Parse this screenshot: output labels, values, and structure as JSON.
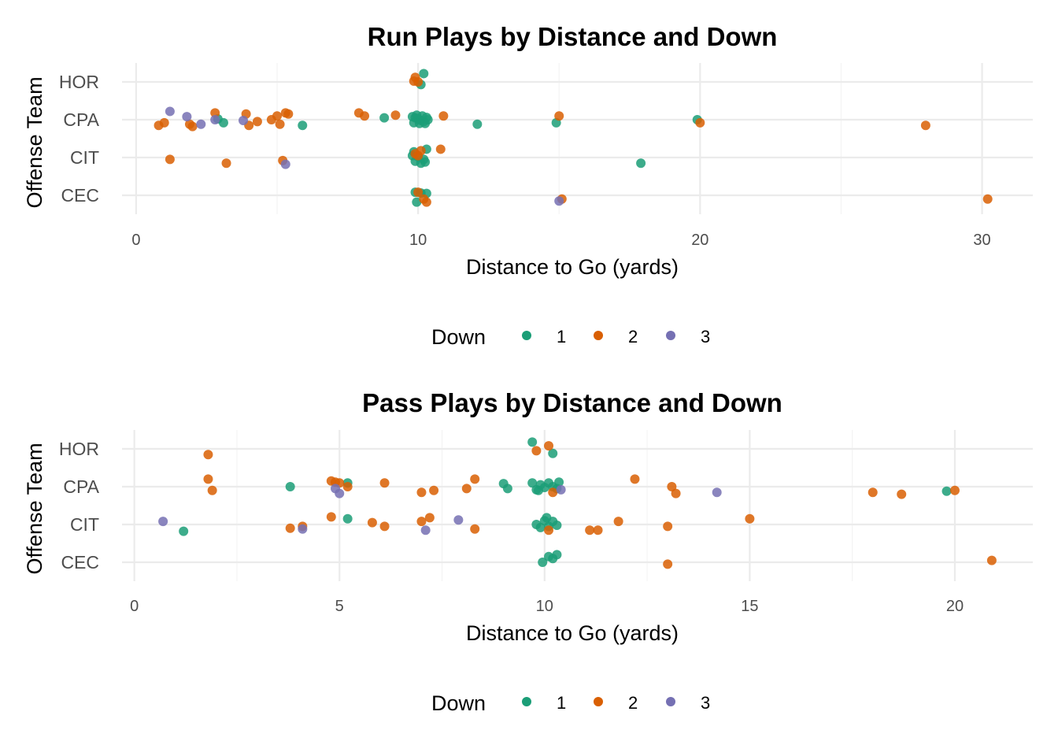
{
  "colors": {
    "down_1": "#1B9E77",
    "down_2": "#D95F02",
    "down_3": "#7570B3"
  },
  "chart_data": [
    {
      "type": "scatter",
      "title": "Run Plays by Distance and Down",
      "xlabel": "Distance to Go (yards)",
      "ylabel": "Offense Team",
      "categories": [
        "CEC",
        "CIT",
        "CPA",
        "HOR"
      ],
      "xticks": [
        0,
        10,
        20,
        30
      ],
      "xlim": [
        -0.5,
        31.8
      ],
      "grid": true,
      "legend": {
        "title": "Down",
        "position": "bottom",
        "entries": [
          "1",
          "2",
          "3"
        ]
      },
      "series": [
        {
          "name": "1",
          "points": [
            [
              10.2,
              "HOR",
              0.22
            ],
            [
              10.1,
              "HOR",
              -0.07
            ],
            [
              9.8,
              "CPA",
              0.08
            ],
            [
              9.9,
              "CPA",
              0.05
            ],
            [
              10.0,
              "CPA",
              0.02
            ],
            [
              10.1,
              "CPA",
              -0.02
            ],
            [
              10.2,
              "CPA",
              -0.05
            ],
            [
              10.3,
              "CPA",
              0.06
            ],
            [
              9.85,
              "CPA",
              -0.08
            ],
            [
              10.05,
              "CPA",
              -0.1
            ],
            [
              10.15,
              "CPA",
              0.1
            ],
            [
              10.25,
              "CPA",
              -0.1
            ],
            [
              9.95,
              "CPA",
              0.12
            ],
            [
              10.35,
              "CPA",
              0.0
            ],
            [
              8.8,
              "CPA",
              0.05
            ],
            [
              12.1,
              "CPA",
              -0.12
            ],
            [
              14.9,
              "CPA",
              -0.08
            ],
            [
              19.9,
              "CPA",
              0.0
            ],
            [
              5.9,
              "CPA",
              -0.15
            ],
            [
              3.1,
              "CPA",
              -0.08
            ],
            [
              2.9,
              "CPA",
              0.02
            ],
            [
              9.8,
              "CIT",
              0.05
            ],
            [
              9.9,
              "CIT",
              -0.1
            ],
            [
              10.0,
              "CIT",
              0.02
            ],
            [
              10.1,
              "CIT",
              -0.15
            ],
            [
              10.2,
              "CIT",
              -0.05
            ],
            [
              10.3,
              "CIT",
              0.22
            ],
            [
              9.85,
              "CIT",
              0.15
            ],
            [
              10.25,
              "CIT",
              -0.12
            ],
            [
              17.9,
              "CIT",
              -0.15
            ],
            [
              9.9,
              "CEC",
              0.08
            ],
            [
              10.1,
              "CEC",
              0.06
            ],
            [
              10.3,
              "CEC",
              0.05
            ],
            [
              9.95,
              "CEC",
              -0.18
            ]
          ]
        },
        {
          "name": "2",
          "points": [
            [
              9.9,
              "HOR",
              0.12
            ],
            [
              10.0,
              "HOR",
              0.0
            ],
            [
              9.85,
              "HOR",
              0.02
            ],
            [
              0.8,
              "CPA",
              -0.15
            ],
            [
              1.0,
              "CPA",
              -0.08
            ],
            [
              1.9,
              "CPA",
              -0.12
            ],
            [
              2.0,
              "CPA",
              -0.18
            ],
            [
              2.8,
              "CPA",
              0.18
            ],
            [
              3.9,
              "CPA",
              0.15
            ],
            [
              4.0,
              "CPA",
              -0.15
            ],
            [
              4.3,
              "CPA",
              -0.05
            ],
            [
              4.8,
              "CPA",
              0.0
            ],
            [
              5.0,
              "CPA",
              0.1
            ],
            [
              5.1,
              "CPA",
              -0.12
            ],
            [
              5.3,
              "CPA",
              0.18
            ],
            [
              5.4,
              "CPA",
              0.15
            ],
            [
              7.9,
              "CPA",
              0.18
            ],
            [
              8.1,
              "CPA",
              0.1
            ],
            [
              9.2,
              "CPA",
              0.12
            ],
            [
              10.9,
              "CPA",
              0.1
            ],
            [
              15.0,
              "CPA",
              0.1
            ],
            [
              20.0,
              "CPA",
              -0.08
            ],
            [
              28.0,
              "CPA",
              -0.15
            ],
            [
              1.2,
              "CIT",
              -0.05
            ],
            [
              3.2,
              "CIT",
              -0.15
            ],
            [
              5.2,
              "CIT",
              -0.08
            ],
            [
              9.9,
              "CIT",
              0.1
            ],
            [
              10.1,
              "CIT",
              0.18
            ],
            [
              10.8,
              "CIT",
              0.22
            ],
            [
              10.0,
              "CIT",
              0.05
            ],
            [
              10.0,
              "CEC",
              0.08
            ],
            [
              10.2,
              "CEC",
              -0.1
            ],
            [
              10.3,
              "CEC",
              -0.18
            ],
            [
              15.1,
              "CEC",
              -0.1
            ],
            [
              30.2,
              "CEC",
              -0.1
            ]
          ]
        },
        {
          "name": "3",
          "points": [
            [
              1.2,
              "CPA",
              0.22
            ],
            [
              1.8,
              "CPA",
              0.08
            ],
            [
              2.3,
              "CPA",
              -0.12
            ],
            [
              2.8,
              "CPA",
              0.0
            ],
            [
              3.8,
              "CPA",
              -0.02
            ],
            [
              5.3,
              "CIT",
              -0.18
            ],
            [
              15.0,
              "CEC",
              -0.15
            ]
          ]
        }
      ]
    },
    {
      "type": "scatter",
      "title": "Pass Plays by Distance and Down",
      "xlabel": "Distance to Go (yards)",
      "ylabel": "Offense Team",
      "categories": [
        "CEC",
        "CIT",
        "CPA",
        "HOR"
      ],
      "xticks": [
        0,
        5,
        10,
        15,
        20
      ],
      "xlim": [
        -0.3,
        21.9
      ],
      "grid": true,
      "legend": {
        "title": "Down",
        "position": "bottom",
        "entries": [
          "1",
          "2",
          "3"
        ]
      },
      "series": [
        {
          "name": "1",
          "points": [
            [
              9.7,
              "HOR",
              0.18
            ],
            [
              10.2,
              "HOR",
              -0.12
            ],
            [
              3.8,
              "CPA",
              0.0
            ],
            [
              5.2,
              "CPA",
              0.1
            ],
            [
              9.0,
              "CPA",
              0.08
            ],
            [
              9.1,
              "CPA",
              -0.05
            ],
            [
              9.7,
              "CPA",
              0.1
            ],
            [
              9.8,
              "CPA",
              -0.08
            ],
            [
              9.9,
              "CPA",
              0.05
            ],
            [
              10.0,
              "CPA",
              -0.02
            ],
            [
              10.1,
              "CPA",
              0.1
            ],
            [
              10.2,
              "CPA",
              0.0
            ],
            [
              10.3,
              "CPA",
              -0.05
            ],
            [
              10.35,
              "CPA",
              0.12
            ],
            [
              9.85,
              "CPA",
              -0.1
            ],
            [
              19.8,
              "CPA",
              -0.12
            ],
            [
              1.2,
              "CIT",
              -0.18
            ],
            [
              5.2,
              "CIT",
              0.15
            ],
            [
              9.8,
              "CIT",
              0.0
            ],
            [
              9.9,
              "CIT",
              -0.08
            ],
            [
              10.0,
              "CIT",
              0.1
            ],
            [
              10.1,
              "CIT",
              -0.05
            ],
            [
              10.2,
              "CIT",
              0.08
            ],
            [
              10.3,
              "CIT",
              -0.02
            ],
            [
              10.05,
              "CIT",
              0.18
            ],
            [
              9.95,
              "CEC",
              0.0
            ],
            [
              10.1,
              "CEC",
              0.15
            ],
            [
              10.2,
              "CEC",
              0.1
            ],
            [
              10.3,
              "CEC",
              0.2
            ]
          ]
        },
        {
          "name": "2",
          "points": [
            [
              1.8,
              "HOR",
              -0.15
            ],
            [
              9.8,
              "HOR",
              -0.05
            ],
            [
              10.1,
              "HOR",
              0.08
            ],
            [
              1.8,
              "CPA",
              0.2
            ],
            [
              1.9,
              "CPA",
              -0.1
            ],
            [
              4.8,
              "CPA",
              0.15
            ],
            [
              4.9,
              "CPA",
              0.12
            ],
            [
              5.0,
              "CPA",
              0.1
            ],
            [
              5.2,
              "CPA",
              0.0
            ],
            [
              6.1,
              "CPA",
              0.1
            ],
            [
              7.0,
              "CPA",
              -0.15
            ],
            [
              7.3,
              "CPA",
              -0.1
            ],
            [
              8.1,
              "CPA",
              -0.05
            ],
            [
              8.3,
              "CPA",
              0.2
            ],
            [
              10.2,
              "CPA",
              -0.15
            ],
            [
              12.2,
              "CPA",
              0.2
            ],
            [
              13.1,
              "CPA",
              0.0
            ],
            [
              13.2,
              "CPA",
              -0.18
            ],
            [
              18.0,
              "CPA",
              -0.15
            ],
            [
              18.7,
              "CPA",
              -0.2
            ],
            [
              20.0,
              "CPA",
              -0.1
            ],
            [
              3.8,
              "CIT",
              -0.1
            ],
            [
              4.1,
              "CIT",
              -0.05
            ],
            [
              4.8,
              "CIT",
              0.2
            ],
            [
              5.8,
              "CIT",
              0.05
            ],
            [
              6.1,
              "CIT",
              -0.05
            ],
            [
              7.0,
              "CIT",
              0.08
            ],
            [
              7.2,
              "CIT",
              0.18
            ],
            [
              8.3,
              "CIT",
              -0.12
            ],
            [
              10.1,
              "CIT",
              -0.15
            ],
            [
              11.1,
              "CIT",
              -0.15
            ],
            [
              11.3,
              "CIT",
              -0.15
            ],
            [
              11.8,
              "CIT",
              0.08
            ],
            [
              13.0,
              "CIT",
              -0.05
            ],
            [
              15.0,
              "CIT",
              0.15
            ],
            [
              13.0,
              "CEC",
              -0.05
            ],
            [
              20.9,
              "CEC",
              0.05
            ]
          ]
        },
        {
          "name": "3",
          "points": [
            [
              4.9,
              "CPA",
              -0.05
            ],
            [
              5.0,
              "CPA",
              -0.18
            ],
            [
              10.4,
              "CPA",
              -0.08
            ],
            [
              14.2,
              "CPA",
              -0.15
            ],
            [
              0.7,
              "CIT",
              0.08
            ],
            [
              4.1,
              "CIT",
              -0.12
            ],
            [
              7.1,
              "CIT",
              -0.15
            ],
            [
              7.9,
              "CIT",
              0.12
            ]
          ]
        }
      ]
    }
  ]
}
